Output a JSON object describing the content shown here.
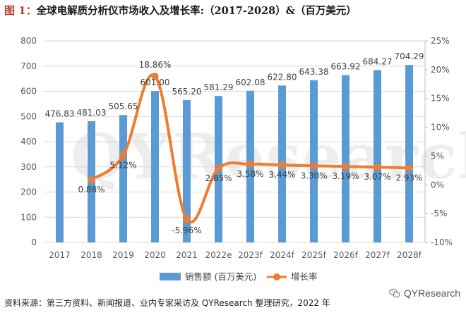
{
  "title": {
    "figure_label": "图 1：",
    "text": "全球电解质分析仪市场收入及增长率:（2017-2028）&（百万美元）"
  },
  "watermark": "QYResearch",
  "source_note": "资料来源：第三方资料、新闻报道、业内专家采访及 QYResearch 整理研究，2022 年",
  "brand": {
    "name": "QYResearch",
    "icon": "wechat-logo-icon"
  },
  "colors": {
    "bar": "#5b9bd5",
    "line": "#ed7d31",
    "grid": "#d9d9d9",
    "axis_text": "#595959"
  },
  "chart_data": {
    "type": "bar",
    "categories": [
      "2017",
      "2018",
      "2019",
      "2020",
      "2021",
      "2022e",
      "2023f",
      "2024f",
      "2025f",
      "2026f",
      "2027f",
      "2028f"
    ],
    "series": [
      {
        "name": "销售额 (百万美元)",
        "type": "bar",
        "axis": "left",
        "values": [
          476.83,
          481.03,
          505.65,
          601.0,
          565.2,
          581.29,
          602.08,
          622.8,
          643.38,
          663.92,
          684.27,
          704.29
        ],
        "labels": [
          "476.83",
          "481.03",
          "505.65",
          "601.00",
          "565.20",
          "581.29",
          "602.08",
          "622.80",
          "643.38",
          "663.92",
          "684.27",
          "704.29"
        ]
      },
      {
        "name": "增长率",
        "type": "line",
        "axis": "right",
        "values": [
          null,
          0.88,
          5.12,
          18.86,
          -5.96,
          2.85,
          3.58,
          3.44,
          3.3,
          3.19,
          3.07,
          2.93
        ],
        "labels": [
          "",
          "0.88%",
          "5.12%",
          "18.86%",
          "-5.96%",
          "2.85%",
          "3.58%",
          "3.44%",
          "3.30%",
          "3.19%",
          "3.07%",
          "2.93%"
        ]
      }
    ],
    "y_left": {
      "min": 0,
      "max": 800,
      "ticks": [
        "0",
        "100",
        "200",
        "300",
        "400",
        "500",
        "600",
        "700",
        "800"
      ]
    },
    "y_right": {
      "min": -10,
      "max": 25,
      "ticks": [
        "-10%",
        "-5%",
        "0%",
        "5%",
        "10%",
        "15%",
        "20%",
        "25%"
      ]
    },
    "legend": {
      "position": "bottom",
      "items": [
        "销售额 (百万美元)",
        "增长率"
      ]
    },
    "grid": true
  }
}
